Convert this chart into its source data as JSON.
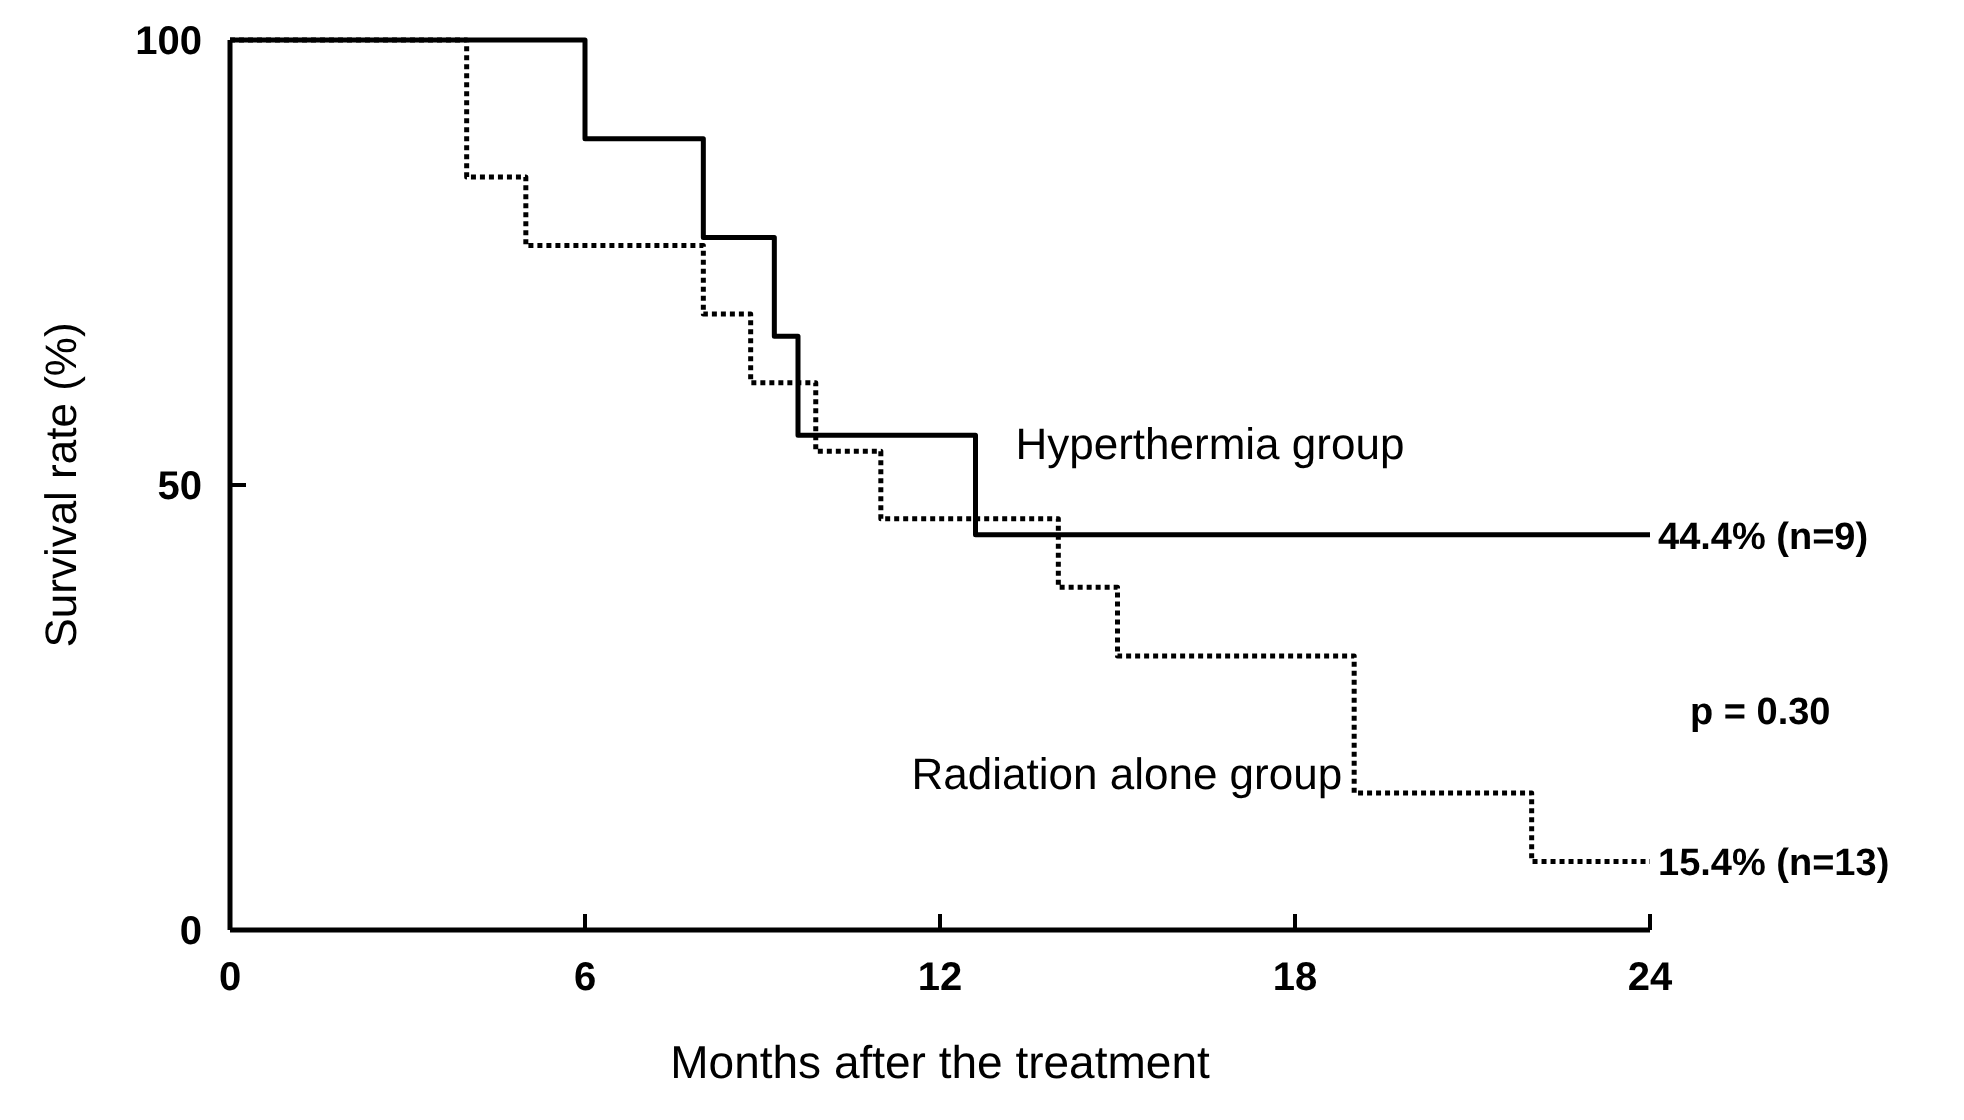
{
  "chart_data": {
    "type": "step",
    "xlabel": "Months after the treatment",
    "ylabel": "Survival rate (%)",
    "xlim": [
      0,
      24
    ],
    "xticks": [
      0,
      6,
      12,
      18,
      24
    ],
    "ylim": [
      0,
      100
    ],
    "yticks": [
      0,
      50,
      100
    ],
    "grid": false,
    "marker": "none",
    "series": [
      {
        "name": "Hyperthermia group",
        "color": "#000000",
        "line_style": "solid",
        "x": [
          0,
          6,
          8,
          9.2,
          9.6,
          12.6,
          24
        ],
        "values": [
          100,
          88.9,
          77.8,
          66.7,
          55.6,
          44.4,
          44.4
        ]
      },
      {
        "name": "Radiation alone group",
        "color": "#000000",
        "line_style": "dotted",
        "x": [
          0,
          4,
          5,
          8,
          8.8,
          9.9,
          11,
          14,
          15,
          19,
          22,
          24
        ],
        "values": [
          100,
          84.6,
          76.9,
          69.2,
          61.5,
          53.8,
          46.2,
          38.5,
          30.8,
          15.4,
          7.7,
          7.7
        ]
      }
    ],
    "annotations": [
      {
        "text": "44.4% (n=9)",
        "x": 24,
        "y": 44.4
      },
      "p = 0.30",
      {
        "text": "15.4% (n=13)",
        "x": 24,
        "y": 7.7
      }
    ]
  }
}
